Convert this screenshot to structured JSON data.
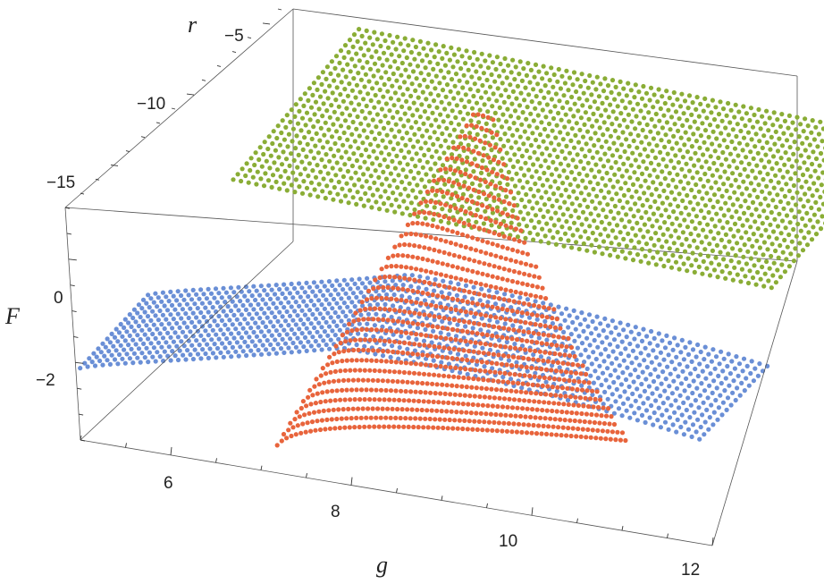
{
  "chart_data": {
    "type": "scatter",
    "subtype": "3d-point-surface",
    "title": "",
    "axes": {
      "x": {
        "label": "g",
        "range": [
          5,
          12
        ],
        "ticks": [
          "6",
          "8",
          "10",
          "12"
        ]
      },
      "y": {
        "label": "r",
        "range": [
          -18,
          -4
        ],
        "ticks": [
          "−5",
          "−10",
          "−15"
        ]
      },
      "z": {
        "label": "F",
        "range": [
          -3.5,
          1
        ],
        "ticks": [
          "0",
          "−2"
        ]
      }
    },
    "series": [
      {
        "color": "#6a8fd6",
        "description_x": [
          5,
          12
        ],
        "description_y": [
          -18,
          -13
        ]
      },
      {
        "color": "#8aad36",
        "description_x": [
          6,
          12
        ],
        "description_y": [
          -18,
          -4
        ]
      },
      {
        "color": "#e8643c",
        "description_x": [
          7.2,
          11
        ],
        "description_y": [
          -18,
          -4
        ]
      }
    ],
    "box": "on",
    "grid": false,
    "legend": "none"
  }
}
